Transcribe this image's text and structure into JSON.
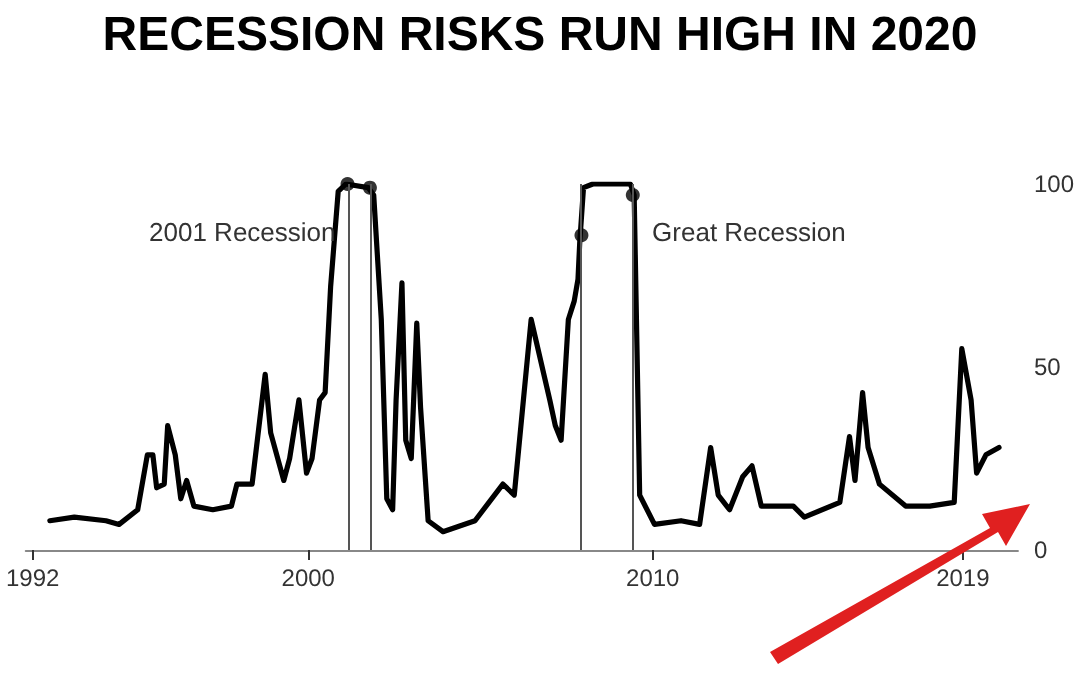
{
  "chart_data": {
    "type": "line",
    "title": "RECESSION RISKS RUN HIGH IN 2020",
    "xlim": [
      1991.8,
      2020.6
    ],
    "xticks": [
      1992,
      2000,
      2010,
      2019
    ],
    "ylim": [
      0,
      100
    ],
    "yticks": [
      0,
      50,
      100
    ],
    "grid": false,
    "marker": "none",
    "line_style": "solid",
    "series": [
      {
        "color": "#000000",
        "x": [
          1992.5,
          1993.21,
          1994.13,
          1994.51,
          1995.05,
          1995.33,
          1995.49,
          1995.6,
          1995.82,
          1995.92,
          1996.14,
          1996.3,
          1996.47,
          1996.68,
          1997.23,
          1997.77,
          1997.93,
          1998.37,
          1998.75,
          1998.91,
          1999.29,
          1999.46,
          1999.73,
          1999.95,
          2000.11,
          2000.33,
          2000.49,
          2000.65,
          2000.87,
          2001.09,
          2001.74,
          2001.9,
          2002.12,
          2002.28,
          2002.45,
          2002.55,
          2002.72,
          2002.83,
          2002.99,
          2003.15,
          2003.26,
          2003.48,
          2003.91,
          2004.84,
          2005.65,
          2005.98,
          2006.47,
          2007.01,
          2007.17,
          2007.34,
          2007.55,
          2007.72,
          2007.83,
          2007.88,
          2007.99,
          2008.26,
          2009.35,
          2009.46,
          2009.62,
          2010.05,
          2010.82,
          2011.36,
          2011.68,
          2011.9,
          2012.23,
          2012.61,
          2012.88,
          2013.15,
          2014.08,
          2014.4,
          2015.43,
          2015.71,
          2015.87,
          2016.09,
          2016.25,
          2016.58,
          2017.34,
          2018.04,
          2018.75,
          2018.97,
          2019.24,
          2019.4,
          2019.67,
          2020.05
        ],
        "values": [
          8,
          9,
          8,
          7,
          11,
          26,
          26,
          17,
          18,
          34,
          26,
          14,
          19,
          12,
          11,
          12,
          18,
          18,
          48,
          32,
          19,
          25,
          41,
          21,
          25,
          41,
          43,
          72,
          98,
          100,
          99,
          97,
          63,
          14,
          11,
          41,
          73,
          30,
          25,
          62,
          39,
          8,
          5,
          8,
          18,
          15,
          63,
          41,
          34,
          30,
          63,
          68,
          74,
          84,
          99,
          100,
          100,
          97,
          15,
          7,
          8,
          7,
          28,
          15,
          11,
          20,
          23,
          12,
          12,
          9,
          13,
          31,
          19,
          43,
          28,
          18,
          12,
          12,
          13,
          55,
          41,
          21,
          26,
          28
        ]
      },
      {
        "type": "scatter",
        "marker": "circle",
        "color": "#000000",
        "x": [
          2001.14,
          2001.79,
          2007.93,
          2009.42
        ],
        "values": [
          100,
          99,
          86,
          97
        ]
      }
    ],
    "ref_lines": [
      {
        "axis": "x",
        "value": 2001.14,
        "color": "#555555",
        "label": "2001 Recession"
      },
      {
        "axis": "x",
        "value": 2001.79,
        "color": "#555555"
      },
      {
        "axis": "x",
        "value": 2007.93,
        "color": "#555555"
      },
      {
        "axis": "x",
        "value": 2009.4,
        "color": "#555555",
        "label": "Great Recession"
      }
    ]
  }
}
